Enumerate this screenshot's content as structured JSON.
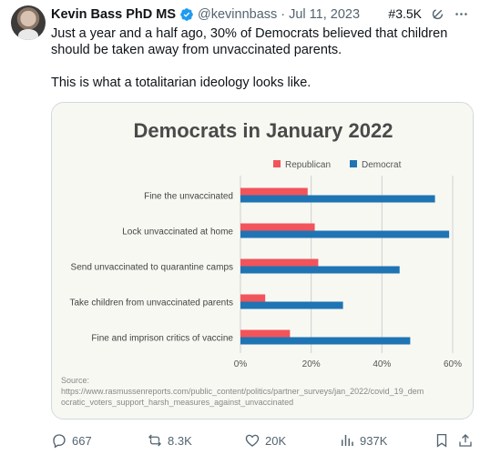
{
  "tweet": {
    "author_name": "Kevin Bass PhD MS",
    "author_handle": "@kevinnbass",
    "separator": "·",
    "date": "Jul 11, 2023",
    "tag": "#3.5K",
    "text_line1": "Just a year and a half ago, 30% of Democrats believed that children should be taken away from unvaccinated parents.",
    "text_line2": "This is what a totalitarian ideology looks like.",
    "icons": [
      "avatar",
      "verified-badge-icon",
      "grok-icon",
      "more-icon"
    ]
  },
  "chart_data": {
    "type": "bar",
    "orientation": "horizontal",
    "title": "Democrats in January 2022",
    "categories": [
      "Fine the unvaccinated",
      "Lock unvaccinated at home",
      "Send unvaccinated to quarantine camps",
      "Take children from unvaccinated parents",
      "Fine and imprison critics of vaccine"
    ],
    "series": [
      {
        "name": "Republican",
        "color": "#f2545b",
        "values": [
          19,
          21,
          22,
          7,
          14
        ]
      },
      {
        "name": "Democrat",
        "color": "#1f74b4",
        "values": [
          55,
          59,
          45,
          29,
          48
        ]
      }
    ],
    "x_ticks": [
      "0%",
      "20%",
      "40%",
      "60%"
    ],
    "xlim": [
      0,
      60
    ],
    "grid": true,
    "legend_position": "top-right",
    "source_label": "Source:",
    "source_line1": "https://www.rasmussenreports.com/public_content/politics/partner_surveys/jan_2022/covid_19_dem",
    "source_line2": "ocratic_voters_support_harsh_measures_against_unvaccinated"
  },
  "actions": {
    "replies": "667",
    "reposts": "8.3K",
    "likes": "20K",
    "views": "937K",
    "icons": [
      "reply-icon",
      "repost-icon",
      "like-icon",
      "views-icon",
      "bookmark-icon",
      "share-icon"
    ]
  },
  "colors": {
    "verified": "#1d9bf0",
    "muted": "#536471",
    "chart_bg": "#f7f8f2"
  }
}
